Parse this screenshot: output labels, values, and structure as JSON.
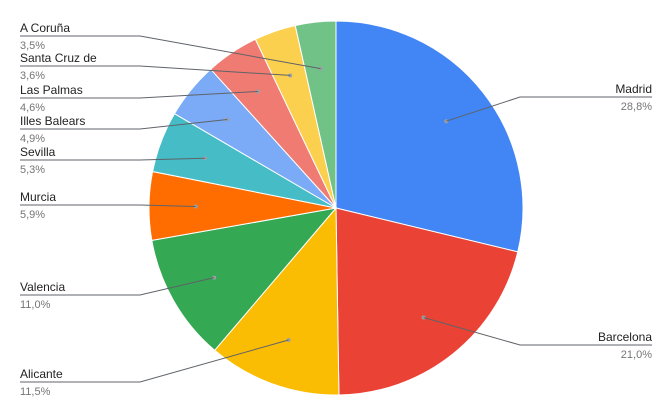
{
  "chart_data": {
    "type": "pie",
    "slices": [
      {
        "name": "Madrid",
        "value": 28.8,
        "pct_label": "28,8%",
        "color": "#4285F4"
      },
      {
        "name": "Barcelona",
        "value": 21.0,
        "pct_label": "21,0%",
        "color": "#EA4335"
      },
      {
        "name": "Alicante",
        "value": 11.5,
        "pct_label": "11,5%",
        "color": "#FBBC04"
      },
      {
        "name": "Valencia",
        "value": 11.0,
        "pct_label": "11,0%",
        "color": "#34A853"
      },
      {
        "name": "Murcia",
        "value": 5.9,
        "pct_label": "5,9%",
        "color": "#FF6D01"
      },
      {
        "name": "Sevilla",
        "value": 5.3,
        "pct_label": "5,3%",
        "color": "#46BDC6"
      },
      {
        "name": "Illes Balears",
        "value": 4.9,
        "pct_label": "4,9%",
        "color": "#7BAAF7"
      },
      {
        "name": "Las Palmas",
        "value": 4.6,
        "pct_label": "4,6%",
        "color": "#F07B72"
      },
      {
        "name": "Santa Cruz de",
        "value": 3.6,
        "pct_label": "3,6%",
        "color": "#FCD04F"
      },
      {
        "name": "A Coruña",
        "value": 3.5,
        "pct_label": "3,5%",
        "color": "#71C287"
      }
    ],
    "title": "",
    "legend": "none"
  }
}
